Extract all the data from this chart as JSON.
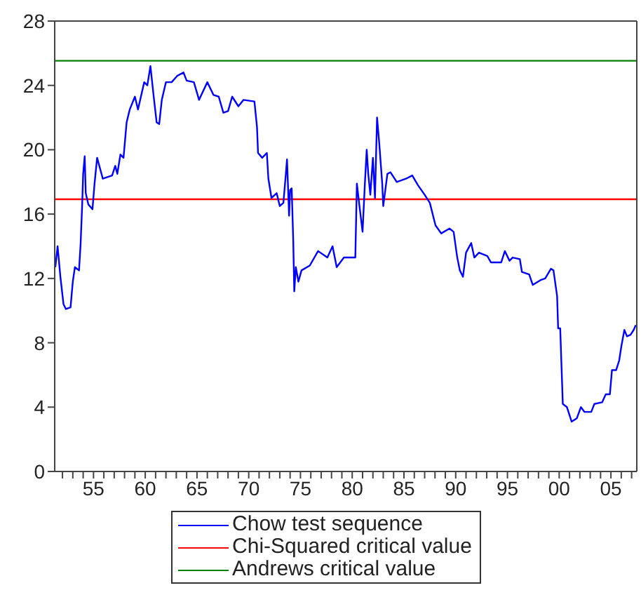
{
  "chart_data": {
    "type": "line",
    "xlim": [
      1951.25,
      2007.5
    ],
    "ylim": [
      0,
      28
    ],
    "yticks": [
      0,
      4,
      8,
      12,
      16,
      20,
      24,
      28
    ],
    "xticks": [
      {
        "value": 1952,
        "label": null
      },
      {
        "value": 1953,
        "label": null
      },
      {
        "value": 1954,
        "label": null
      },
      {
        "value": 1955,
        "label": "55"
      },
      {
        "value": 1956,
        "label": null
      },
      {
        "value": 1957,
        "label": null
      },
      {
        "value": 1958,
        "label": null
      },
      {
        "value": 1959,
        "label": null
      },
      {
        "value": 1960,
        "label": "60"
      },
      {
        "value": 1961,
        "label": null
      },
      {
        "value": 1962,
        "label": null
      },
      {
        "value": 1963,
        "label": null
      },
      {
        "value": 1964,
        "label": null
      },
      {
        "value": 1965,
        "label": "65"
      },
      {
        "value": 1966,
        "label": null
      },
      {
        "value": 1967,
        "label": null
      },
      {
        "value": 1968,
        "label": null
      },
      {
        "value": 1969,
        "label": null
      },
      {
        "value": 1970,
        "label": "70"
      },
      {
        "value": 1971,
        "label": null
      },
      {
        "value": 1972,
        "label": null
      },
      {
        "value": 1973,
        "label": null
      },
      {
        "value": 1974,
        "label": null
      },
      {
        "value": 1975,
        "label": "75"
      },
      {
        "value": 1976,
        "label": null
      },
      {
        "value": 1977,
        "label": null
      },
      {
        "value": 1978,
        "label": null
      },
      {
        "value": 1979,
        "label": null
      },
      {
        "value": 1980,
        "label": "80"
      },
      {
        "value": 1981,
        "label": null
      },
      {
        "value": 1982,
        "label": null
      },
      {
        "value": 1983,
        "label": null
      },
      {
        "value": 1984,
        "label": null
      },
      {
        "value": 1985,
        "label": "85"
      },
      {
        "value": 1986,
        "label": null
      },
      {
        "value": 1987,
        "label": null
      },
      {
        "value": 1988,
        "label": null
      },
      {
        "value": 1989,
        "label": null
      },
      {
        "value": 1990,
        "label": "90"
      },
      {
        "value": 1991,
        "label": null
      },
      {
        "value": 1992,
        "label": null
      },
      {
        "value": 1993,
        "label": null
      },
      {
        "value": 1994,
        "label": null
      },
      {
        "value": 1995,
        "label": "95"
      },
      {
        "value": 1996,
        "label": null
      },
      {
        "value": 1997,
        "label": null
      },
      {
        "value": 1998,
        "label": null
      },
      {
        "value": 1999,
        "label": null
      },
      {
        "value": 2000,
        "label": "00"
      },
      {
        "value": 2001,
        "label": null
      },
      {
        "value": 2002,
        "label": null
      },
      {
        "value": 2003,
        "label": null
      },
      {
        "value": 2004,
        "label": null
      },
      {
        "value": 2005,
        "label": "05"
      },
      {
        "value": 2006,
        "label": null
      },
      {
        "value": 2007,
        "label": null
      }
    ],
    "x": [
      1951.31,
      1951.53,
      1951.8,
      1952.1,
      1952.33,
      1952.78,
      1953.0,
      1953.2,
      1953.6,
      1953.75,
      1953.9,
      1954.0,
      1954.15,
      1954.25,
      1954.5,
      1954.9,
      1955.1,
      1955.35,
      1955.9,
      1956.8,
      1957.1,
      1957.3,
      1957.6,
      1957.9,
      1958.2,
      1958.5,
      1959.0,
      1959.3,
      1959.9,
      1960.2,
      1960.5,
      1960.8,
      1961.1,
      1961.35,
      1961.6,
      1962.0,
      1962.55,
      1963.1,
      1963.7,
      1964.0,
      1964.7,
      1965.2,
      1966.0,
      1966.6,
      1967.1,
      1967.55,
      1968.0,
      1968.4,
      1969.0,
      1969.5,
      1970.55,
      1970.8,
      1970.9,
      1971.3,
      1971.75,
      1971.9,
      1972.2,
      1972.7,
      1973.0,
      1973.35,
      1973.6,
      1973.7,
      1973.9,
      1974.0,
      1974.15,
      1974.3,
      1974.4,
      1974.55,
      1974.8,
      1975.1,
      1975.9,
      1976.7,
      1977.6,
      1978.1,
      1978.5,
      1979.2,
      1980.3,
      1980.45,
      1980.7,
      1981.0,
      1981.2,
      1981.4,
      1981.55,
      1981.75,
      1982.0,
      1982.2,
      1982.4,
      1982.6,
      1982.9,
      1983.0,
      1983.4,
      1983.7,
      1984.3,
      1985.2,
      1985.8,
      1986.35,
      1987.0,
      1987.5,
      1988.05,
      1988.6,
      1989.4,
      1989.8,
      1990.15,
      1990.4,
      1990.7,
      1991.0,
      1991.5,
      1991.8,
      1992.25,
      1993.05,
      1993.4,
      1994.4,
      1994.75,
      1995.2,
      1995.5,
      1996.2,
      1996.4,
      1997.1,
      1997.45,
      1998.2,
      1998.65,
      1999.2,
      1999.45,
      1999.8,
      1999.9,
      2000.1,
      2000.35,
      2000.75,
      2001.2,
      2001.7,
      2002.1,
      2002.45,
      2003.1,
      2003.4,
      2004.15,
      2004.5,
      2004.9,
      2005.1,
      2005.5,
      2005.8,
      2006.0,
      2006.3,
      2006.55,
      2006.9,
      2007.2,
      2007.4
    ],
    "series": [
      {
        "name": "Chow test sequence",
        "color": "#0000ff",
        "values": [
          12.7,
          14.0,
          12.1,
          10.4,
          10.1,
          10.2,
          11.8,
          12.7,
          12.5,
          14.1,
          16.5,
          18.5,
          19.6,
          17.3,
          16.6,
          16.3,
          17.9,
          19.5,
          18.2,
          18.4,
          19.0,
          18.5,
          19.7,
          19.5,
          21.7,
          22.5,
          23.3,
          22.5,
          24.2,
          24.0,
          25.2,
          23.4,
          21.7,
          21.6,
          23.1,
          24.2,
          24.2,
          24.6,
          24.8,
          24.3,
          24.2,
          23.1,
          24.2,
          23.4,
          23.3,
          22.3,
          22.4,
          23.3,
          22.7,
          23.1,
          23.0,
          21.4,
          19.8,
          19.5,
          19.8,
          18.2,
          17.0,
          17.3,
          16.5,
          16.7,
          18.6,
          19.4,
          15.9,
          17.5,
          17.6,
          14.4,
          11.2,
          12.7,
          11.8,
          12.5,
          12.8,
          13.7,
          13.3,
          14.0,
          12.7,
          13.3,
          13.3,
          17.9,
          16.5,
          14.9,
          17.6,
          20.0,
          18.5,
          17.2,
          19.5,
          17.0,
          22.0,
          20.5,
          17.9,
          16.5,
          18.5,
          18.6,
          18.0,
          18.2,
          18.4,
          17.8,
          17.2,
          16.7,
          15.3,
          14.8,
          15.1,
          14.9,
          13.3,
          12.5,
          12.1,
          13.6,
          14.2,
          13.3,
          13.6,
          13.4,
          13.0,
          13.0,
          13.7,
          13.1,
          13.3,
          13.2,
          12.4,
          12.25,
          11.6,
          11.9,
          12.0,
          12.6,
          12.5,
          10.9,
          8.9,
          8.9,
          4.2,
          4.0,
          3.1,
          3.3,
          4.0,
          3.7,
          3.7,
          4.2,
          4.3,
          4.8,
          4.8,
          6.3,
          6.3,
          6.9,
          7.75,
          8.8,
          8.4,
          8.5,
          8.8,
          9.1
        ]
      }
    ],
    "ref_lines": [
      {
        "axis": "y",
        "value": 16.92,
        "label": "Chi-Squared critical value",
        "color": "#ff0000"
      },
      {
        "axis": "y",
        "value": 25.53,
        "label": "Andrews critical value",
        "color": "#008000"
      }
    ],
    "grid": false,
    "legend": "bottom",
    "marker": "none",
    "line_style": "solid"
  }
}
